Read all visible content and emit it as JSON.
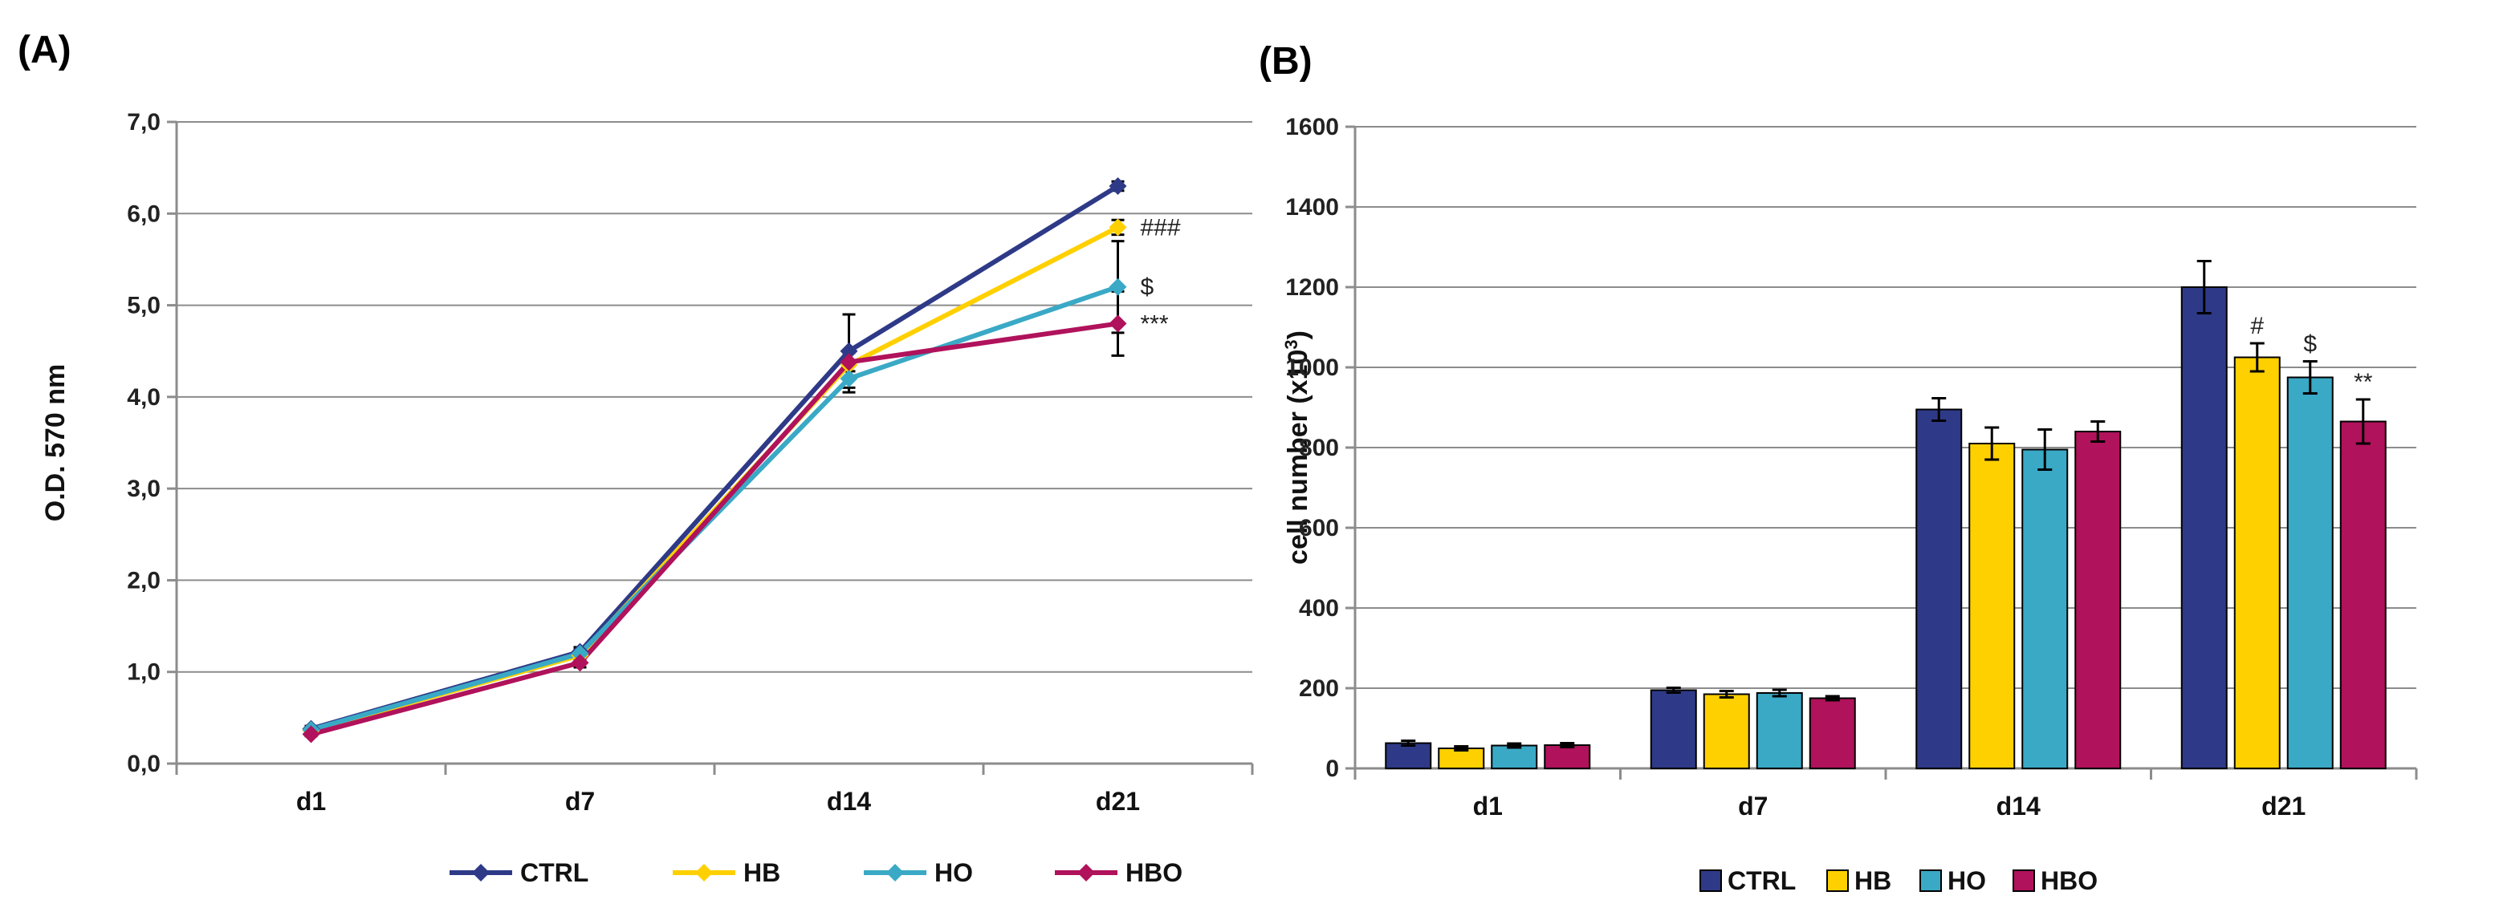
{
  "chart_data": [
    {
      "panel": "(A)",
      "type": "line",
      "title": "",
      "xlabel": "",
      "ylabel": "O.D. 570 nm",
      "ylim": [
        0,
        7
      ],
      "yticks": [
        "0,0",
        "1,0",
        "2,0",
        "3,0",
        "4,0",
        "5,0",
        "6,0",
        "7,0"
      ],
      "categories": [
        "d1",
        "d7",
        "d14",
        "d21"
      ],
      "grid": true,
      "legend": "bottom",
      "series": [
        {
          "name": "CTRL",
          "color": "#2e3a87",
          "values": [
            0.38,
            1.22,
            4.5,
            6.3
          ],
          "errors": [
            0.03,
            0.05,
            0.4,
            0.05
          ]
        },
        {
          "name": "HB",
          "color": "#ffd000",
          "values": [
            0.36,
            1.18,
            4.35,
            5.85
          ],
          "errors": [
            0.03,
            0.05,
            0.15,
            0.08
          ]
        },
        {
          "name": "HO",
          "color": "#3aa9c6",
          "values": [
            0.37,
            1.2,
            4.2,
            5.2
          ],
          "errors": [
            0.03,
            0.05,
            0.15,
            0.5
          ]
        },
        {
          "name": "HBO",
          "color": "#b0125b",
          "values": [
            0.32,
            1.1,
            4.38,
            4.8
          ],
          "errors": [
            0.02,
            0.05,
            0.1,
            0.35
          ]
        }
      ],
      "annotations": [
        {
          "series": "HB",
          "category": "d21",
          "text": "###"
        },
        {
          "series": "HO",
          "category": "d21",
          "text": "$"
        },
        {
          "series": "HBO",
          "category": "d21",
          "text": "***"
        }
      ]
    },
    {
      "panel": "(B)",
      "type": "bar",
      "title": "",
      "xlabel": "",
      "ylabel": "cell number (x10",
      "ylabel_sup": "3",
      "ylabel_end": ")",
      "ylim": [
        0,
        1600
      ],
      "yticks": [
        "0",
        "200",
        "400",
        "600",
        "800",
        "1000",
        "1200",
        "1400",
        "1600"
      ],
      "categories": [
        "d1",
        "d7",
        "d14",
        "d21"
      ],
      "grid": true,
      "legend": "bottom",
      "series": [
        {
          "name": "CTRL",
          "color": "#2e3a87",
          "values": [
            63,
            195,
            895,
            1200
          ],
          "errors": [
            6,
            6,
            28,
            65
          ]
        },
        {
          "name": "HB",
          "color": "#ffd000",
          "values": [
            50,
            185,
            810,
            1025
          ],
          "errors": [
            5,
            8,
            40,
            35
          ]
        },
        {
          "name": "HO",
          "color": "#3aa9c6",
          "values": [
            57,
            188,
            795,
            975
          ],
          "errors": [
            5,
            8,
            50,
            40
          ]
        },
        {
          "name": "HBO",
          "color": "#b0125b",
          "values": [
            58,
            175,
            840,
            865
          ],
          "errors": [
            5,
            5,
            25,
            55
          ]
        }
      ],
      "annotations": [
        {
          "series": "HB",
          "category": "d21",
          "text": "#"
        },
        {
          "series": "HO",
          "category": "d21",
          "text": "$"
        },
        {
          "series": "HBO",
          "category": "d21",
          "text": "**"
        }
      ]
    }
  ]
}
